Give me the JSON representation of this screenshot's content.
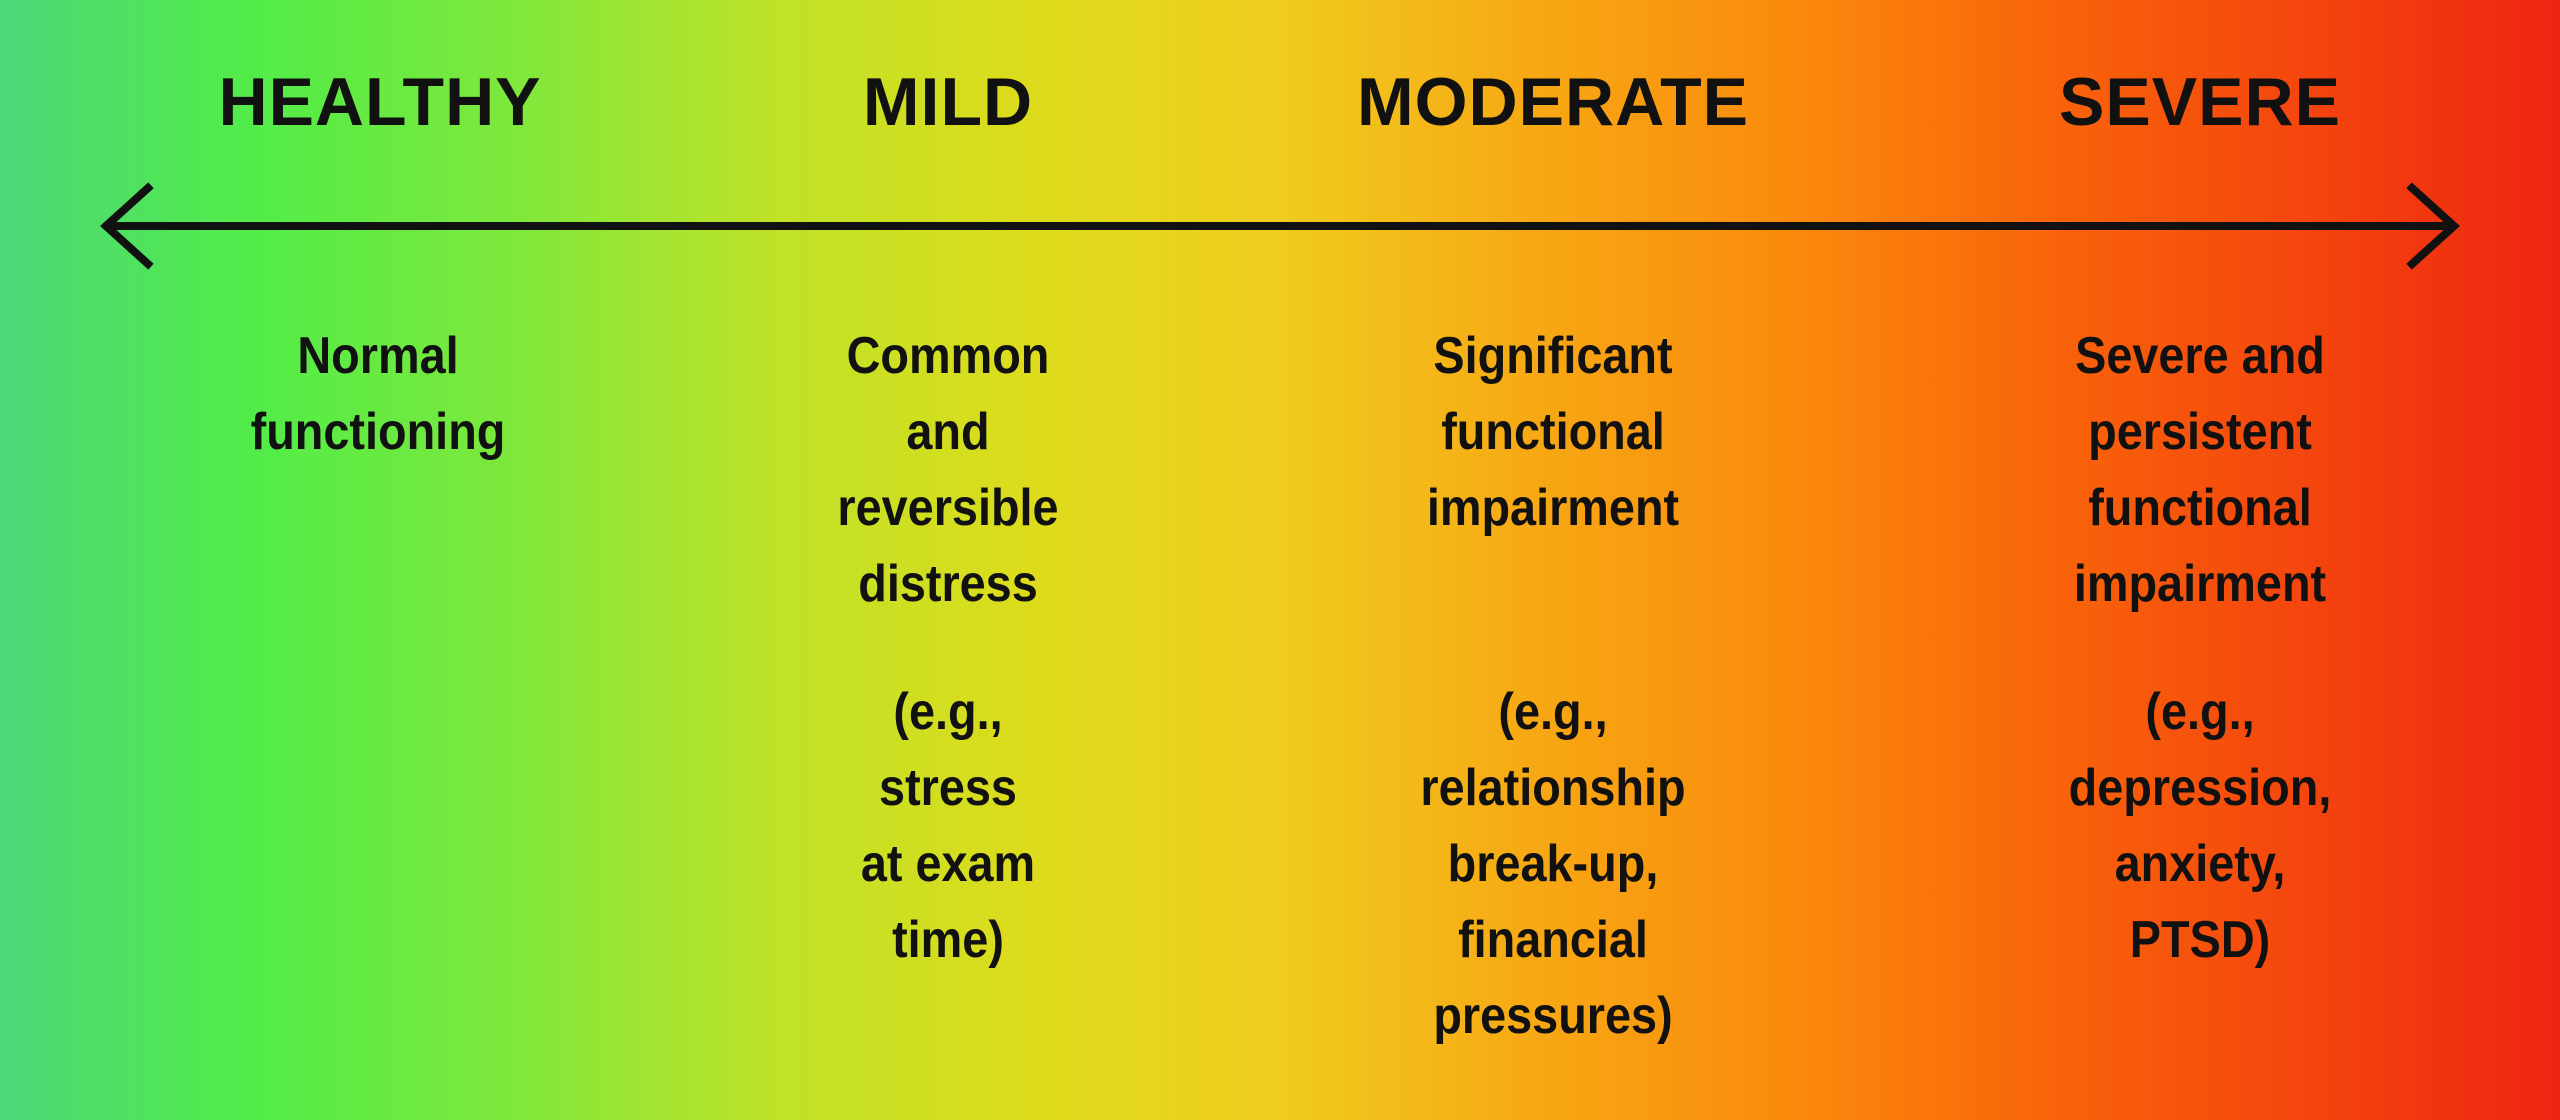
{
  "colors": {
    "gradient_stops": [
      "#4ed67a",
      "#52ec48",
      "#7ee83c",
      "#bee228",
      "#dcdc1c",
      "#f0cc1e",
      "#f7a814",
      "#fa8a0c",
      "#f9640a",
      "#f4460e",
      "#ee2412"
    ],
    "arrow": "#111111",
    "text": "#111111"
  },
  "columns": [
    {
      "key": "healthy",
      "heading": "HEALTHY",
      "description": [
        "Normal",
        "functioning"
      ],
      "example": []
    },
    {
      "key": "mild",
      "heading": "MILD",
      "description": [
        "Common",
        "and",
        "reversible",
        "distress"
      ],
      "example": [
        "(e.g.,",
        "stress",
        "at exam",
        "time)"
      ]
    },
    {
      "key": "moderate",
      "heading": "MODERATE",
      "description": [
        "Significant",
        "functional",
        "impairment"
      ],
      "example": [
        "(e.g.,",
        "relationship",
        "break-up,",
        "financial",
        "pressures)"
      ]
    },
    {
      "key": "severe",
      "heading": "SEVERE",
      "description": [
        "Severe and",
        "persistent",
        "functional",
        "impairment"
      ],
      "example": [
        "(e.g.,",
        "depression,",
        "anxiety,",
        "PTSD)"
      ]
    }
  ]
}
